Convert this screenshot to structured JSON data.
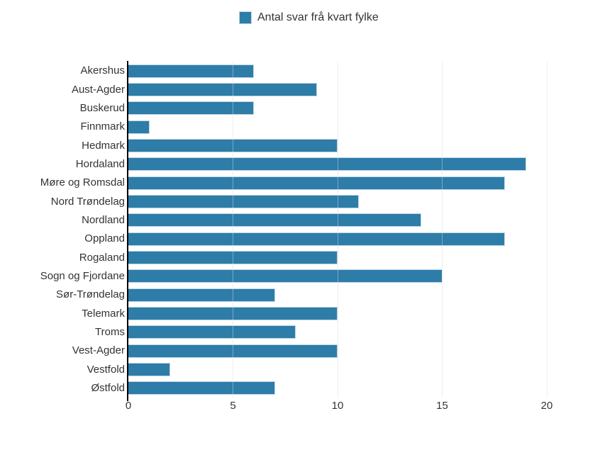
{
  "chart_data": {
    "type": "bar",
    "orientation": "horizontal",
    "title": "",
    "legend_label": "Antal svar frå kvart fylke",
    "legend_position": "top-center",
    "categories": [
      "Akershus",
      "Aust-Agder",
      "Buskerud",
      "Finnmark",
      "Hedmark",
      "Hordaland",
      "Møre og Romsdal",
      "Nord Trøndelag",
      "Nordland",
      "Oppland",
      "Rogaland",
      "Sogn og Fjordane",
      "Sør-Trøndelag",
      "Telemark",
      "Troms",
      "Vest-Agder",
      "Vestfold",
      "Østfold"
    ],
    "values": [
      6,
      9,
      6,
      1,
      10,
      19,
      18,
      11,
      14,
      18,
      10,
      15,
      7,
      10,
      8,
      10,
      2,
      7
    ],
    "xlabel": "",
    "ylabel": "",
    "xlim": [
      0,
      20
    ],
    "xticks": [
      0,
      5,
      10,
      15,
      20
    ],
    "grid": true,
    "colors": {
      "bar": "#2E7CA8",
      "bar_border": "#BCD5E5",
      "gridline": "#E6E6E6",
      "gridline_over_bar": "rgba(255,255,255,0.35)",
      "axis_line": "#000000",
      "text": "#333333"
    }
  }
}
